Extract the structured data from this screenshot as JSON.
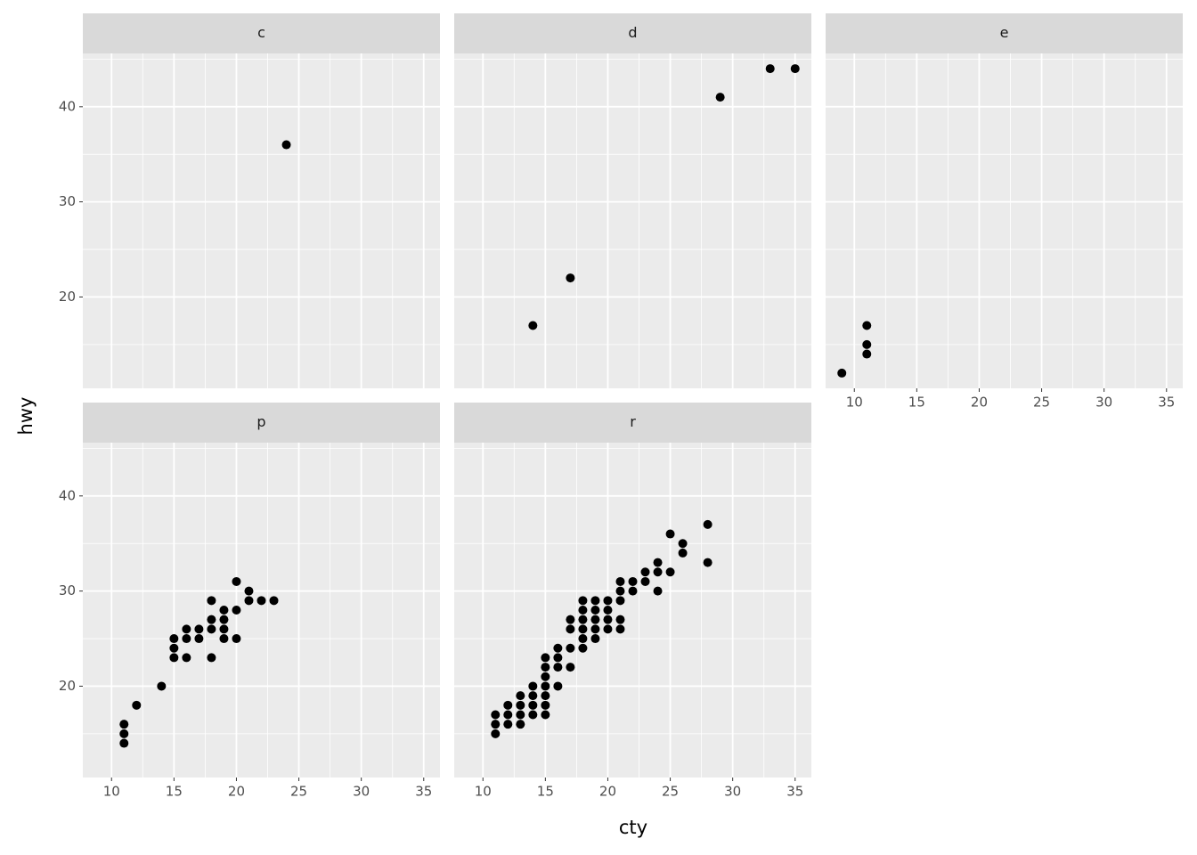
{
  "chart_data": {
    "type": "scatter",
    "x_label": "cty",
    "y_label": "hwy",
    "xlim": [
      7.7,
      36.3
    ],
    "ylim": [
      10.4,
      45.6
    ],
    "xticks": [
      10,
      15,
      20,
      25,
      30,
      35
    ],
    "yticks": [
      20,
      30,
      40
    ],
    "minor_xticks": [
      7.5,
      12.5,
      17.5,
      22.5,
      27.5,
      32.5
    ],
    "minor_yticks": [
      15,
      25,
      35,
      45
    ],
    "color": "#000000",
    "grid": true,
    "facets": [
      {
        "title": "c",
        "x": [
          24
        ],
        "y": [
          36
        ]
      },
      {
        "title": "d",
        "x": [
          14,
          17,
          29,
          33,
          35
        ],
        "y": [
          17,
          22,
          41,
          44,
          44
        ]
      },
      {
        "title": "e",
        "x": [
          9,
          11,
          11,
          11
        ],
        "y": [
          12,
          17,
          15,
          14
        ]
      },
      {
        "title": "p",
        "x": [
          11,
          11,
          11,
          12,
          14,
          15,
          15,
          15,
          16,
          16,
          16,
          17,
          17,
          18,
          18,
          18,
          18,
          19,
          19,
          19,
          19,
          20,
          20,
          20,
          21,
          21,
          22,
          23
        ],
        "y": [
          16,
          15,
          14,
          18,
          20,
          25,
          24,
          23,
          26,
          25,
          23,
          26,
          25,
          29,
          27,
          26,
          23,
          28,
          27,
          26,
          25,
          31,
          28,
          25,
          30,
          29,
          29,
          29
        ]
      },
      {
        "title": "r",
        "x": [
          11,
          11,
          11,
          12,
          12,
          12,
          13,
          13,
          13,
          13,
          14,
          14,
          14,
          14,
          15,
          15,
          15,
          15,
          15,
          15,
          15,
          16,
          16,
          16,
          16,
          17,
          17,
          17,
          17,
          18,
          18,
          18,
          18,
          18,
          18,
          19,
          19,
          19,
          19,
          19,
          20,
          20,
          20,
          20,
          21,
          21,
          21,
          21,
          21,
          22,
          22,
          23,
          23,
          24,
          24,
          24,
          25,
          25,
          26,
          26,
          28,
          28
        ],
        "y": [
          17,
          16,
          15,
          18,
          17,
          16,
          19,
          18,
          17,
          16,
          20,
          19,
          18,
          17,
          23,
          22,
          21,
          20,
          19,
          18,
          17,
          24,
          23,
          22,
          20,
          27,
          26,
          24,
          22,
          29,
          28,
          27,
          26,
          25,
          24,
          29,
          28,
          27,
          26,
          25,
          29,
          28,
          27,
          26,
          31,
          30,
          29,
          27,
          26,
          31,
          30,
          32,
          31,
          33,
          32,
          30,
          36,
          32,
          35,
          34,
          37,
          33
        ]
      }
    ]
  }
}
